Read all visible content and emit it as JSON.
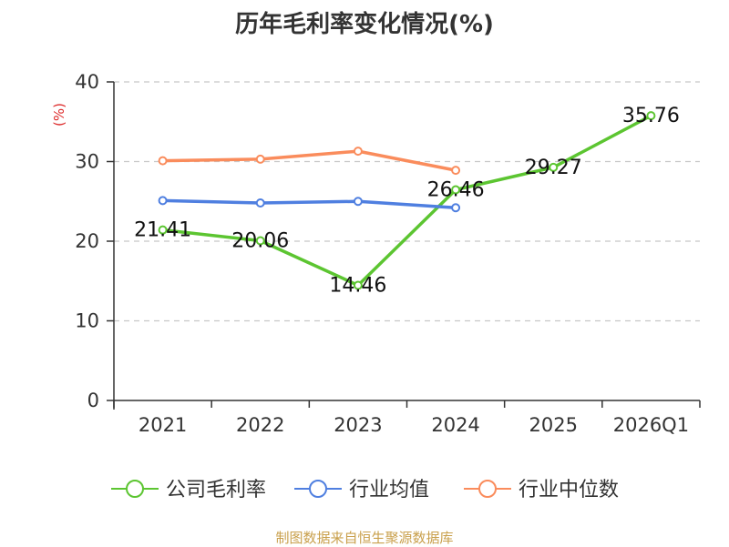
{
  "chart_data": {
    "type": "line",
    "title": "历年毛利率变化情况(%)",
    "ylabel": "(%)",
    "xlabel": "",
    "categories": [
      "2021",
      "2022",
      "2023",
      "2024",
      "2025",
      "2026Q1"
    ],
    "ylim": [
      0,
      40
    ],
    "yticks": [
      0,
      10,
      20,
      30,
      40
    ],
    "grid": true,
    "legend_position": "bottom",
    "series": [
      {
        "name": "公司毛利率",
        "color": "#5cc531",
        "values": [
          21.41,
          20.06,
          14.46,
          26.46,
          29.27,
          35.76
        ],
        "labels": [
          "21.41",
          "20.06",
          "14.46",
          "26.46",
          "29.27",
          "35.76"
        ]
      },
      {
        "name": "行业均值",
        "color": "#4f7fe0",
        "values": [
          25.1,
          24.8,
          25.0,
          24.2,
          null,
          null
        ]
      },
      {
        "name": "行业中位数",
        "color": "#fa8c5c",
        "values": [
          30.1,
          30.3,
          31.3,
          28.9,
          null,
          null
        ]
      }
    ]
  },
  "source": "制图数据来自恒生聚源数据库"
}
